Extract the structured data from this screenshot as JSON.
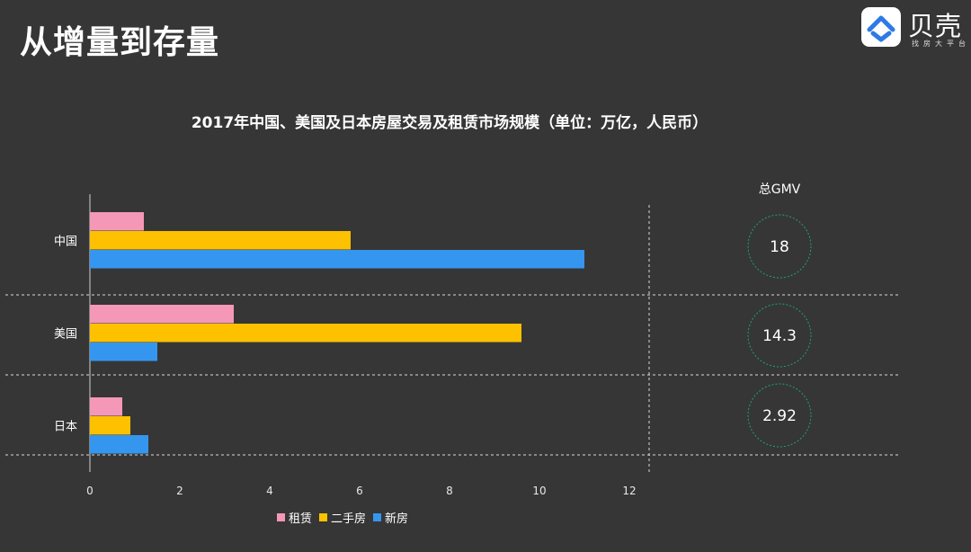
{
  "slide": {
    "title": "从增量到存量"
  },
  "logo": {
    "name": "贝壳",
    "slogan": "找房大平台"
  },
  "chart_data": {
    "type": "bar",
    "orientation": "horizontal",
    "title": "2017年中国、美国及日本房屋交易及租赁市场规模（单位：万亿，人民币）",
    "categories": [
      "中国",
      "美国",
      "日本"
    ],
    "series": [
      {
        "name": "租赁",
        "color": "#f598b8",
        "values": [
          1.2,
          3.2,
          0.72
        ]
      },
      {
        "name": "二手房",
        "color": "#fdc100",
        "values": [
          5.8,
          9.6,
          0.9
        ]
      },
      {
        "name": "新房",
        "color": "#3596f0",
        "values": [
          11.0,
          1.5,
          1.3
        ]
      }
    ],
    "xlim": [
      0,
      12
    ],
    "xticks": [
      "0",
      "2",
      "4",
      "6",
      "8",
      "10",
      "12"
    ],
    "legend_position": "bottom",
    "gmv": {
      "header": "总GMV",
      "values": [
        "18",
        "14.3",
        "2.92"
      ]
    }
  }
}
